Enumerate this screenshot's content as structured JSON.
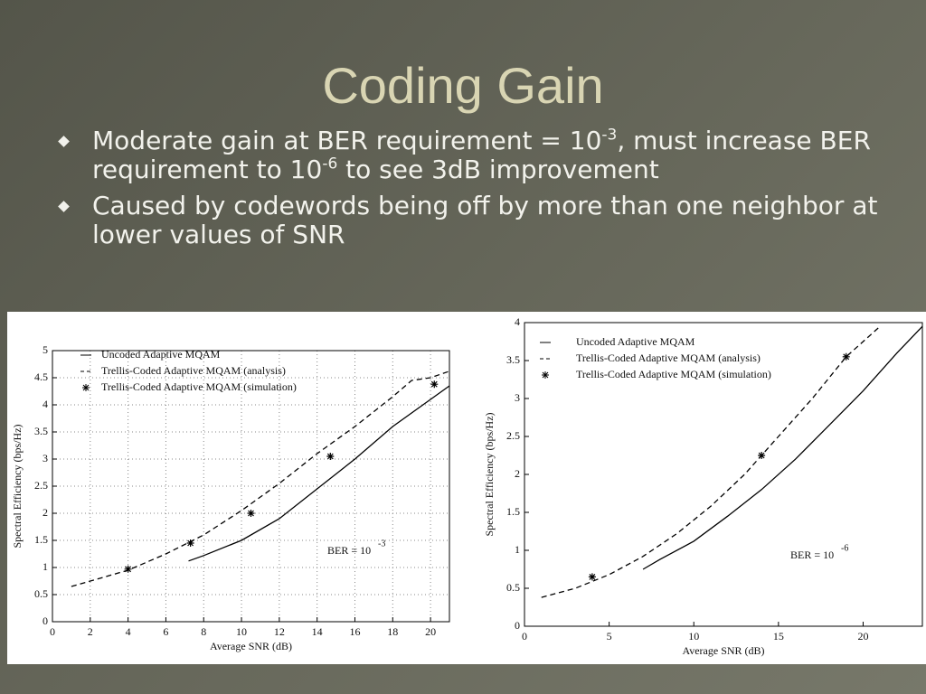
{
  "title": "Coding Gain",
  "bullets": [
    [
      "Moderate gain at BER requirement = 10",
      "-3",
      ", must increase BER requirement to 10",
      "-6",
      " to see 3dB improvement"
    ],
    [
      "Caused by codewords being off by more than one neighbor at lower values of SNR"
    ]
  ],
  "chart_data": [
    {
      "type": "line",
      "xlabel": "Average SNR (dB)",
      "ylabel": "Spectral Efficiency (bps/Hz)",
      "xlim": [
        0,
        21
      ],
      "xticks": [
        0,
        2,
        4,
        6,
        8,
        10,
        12,
        14,
        16,
        18,
        20
      ],
      "ylim": [
        0,
        5
      ],
      "yticks": [
        0,
        0.5,
        1,
        1.5,
        2,
        2.5,
        3,
        3.5,
        4,
        4.5,
        5
      ],
      "grid": true,
      "annotation": {
        "text": "BER = 10",
        "exponent": "-3"
      },
      "series": [
        {
          "name": "Uncoded Adaptive MQAM",
          "color": "#000000",
          "style": "solid",
          "x": [
            7.2,
            8,
            10,
            12,
            14,
            16,
            18,
            20,
            21
          ],
          "values": [
            1.12,
            1.22,
            1.5,
            1.9,
            2.45,
            3.0,
            3.6,
            4.1,
            4.35
          ]
        },
        {
          "name": "Trellis-Coded Adaptive MQAM (analysis)",
          "color": "#000000",
          "style": "dashed",
          "x": [
            1,
            2,
            4,
            6,
            8,
            10,
            12,
            14,
            16,
            18,
            19,
            20,
            21
          ],
          "values": [
            0.65,
            0.75,
            0.95,
            1.25,
            1.6,
            2.05,
            2.55,
            3.1,
            3.6,
            4.15,
            4.45,
            4.5,
            4.62
          ]
        },
        {
          "name": "Trellis-Coded Adaptive MQAM (simulation)",
          "color": "#000000",
          "style": "markers",
          "x": [
            4,
            7.3,
            10.5,
            14.7,
            20.2
          ],
          "values": [
            0.97,
            1.45,
            2.0,
            3.05,
            4.38
          ]
        }
      ]
    },
    {
      "type": "line",
      "xlabel": "Average SNR (dB)",
      "ylabel": "Spectral Efficiency (bps/Hz)",
      "xlim": [
        0,
        23.5
      ],
      "xticks": [
        0,
        5,
        10,
        15,
        20
      ],
      "ylim": [
        0,
        4
      ],
      "yticks": [
        0,
        0.5,
        1,
        1.5,
        2,
        2.5,
        3,
        3.5,
        4
      ],
      "grid": false,
      "annotation": {
        "text": "BER = 10",
        "exponent": "-6"
      },
      "series": [
        {
          "name": "Uncoded Adaptive MQAM",
          "color": "#000000",
          "style": "solid",
          "x": [
            7,
            8,
            10,
            12,
            14,
            16,
            18,
            20,
            22,
            23.5
          ],
          "values": [
            0.75,
            0.88,
            1.12,
            1.45,
            1.8,
            2.2,
            2.65,
            3.1,
            3.6,
            3.95
          ]
        },
        {
          "name": "Trellis-Coded Adaptive MQAM (analysis)",
          "color": "#000000",
          "style": "dashed",
          "x": [
            1,
            3,
            5,
            7,
            9,
            11,
            13,
            15,
            17,
            19,
            21
          ],
          "values": [
            0.38,
            0.5,
            0.68,
            0.92,
            1.22,
            1.58,
            2.0,
            2.5,
            3.0,
            3.55,
            3.95
          ]
        },
        {
          "name": "Trellis-Coded Adaptive MQAM (simulation)",
          "color": "#000000",
          "style": "markers",
          "x": [
            4,
            14,
            19
          ],
          "values": [
            0.65,
            2.25,
            3.55
          ]
        }
      ]
    }
  ]
}
